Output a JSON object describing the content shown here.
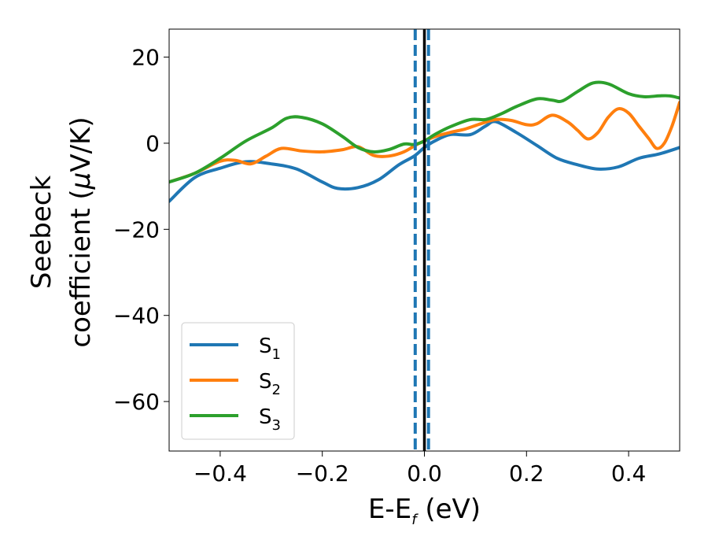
{
  "chart_data": {
    "type": "line",
    "title": "",
    "xlabel": {
      "base": "E-E",
      "sub": "f",
      "rest": " (eV)"
    },
    "ylabel": {
      "line1": "Seebeck",
      "line2_prefix": "coefficient  (",
      "mu": "μ",
      "line2_suffix": "V/K)"
    },
    "xlim": [
      -0.5,
      0.5
    ],
    "ylim": [
      -71.5,
      26.5
    ],
    "xticks": [
      -0.4,
      -0.2,
      0.0,
      0.2,
      0.4
    ],
    "xtick_labels": [
      "−0.4",
      "−0.2",
      "0.0",
      "0.2",
      "0.4"
    ],
    "yticks": [
      20,
      0,
      -20,
      -40,
      -60
    ],
    "ytick_labels": [
      "20",
      "0",
      "−20",
      "−40",
      "−60"
    ],
    "grid": false,
    "legend_position": "lower-left",
    "vlines": [
      {
        "x": -0.018,
        "style": "dashed",
        "color": "#1f77b4"
      },
      {
        "x": 0.008,
        "style": "dashed",
        "color": "#1f77b4"
      },
      {
        "x": 0.0,
        "style": "solid",
        "color": "#000000"
      }
    ],
    "series": [
      {
        "name": "S",
        "sub": "1",
        "color": "#1f77b4",
        "points": [
          [
            -0.5,
            -13.5
          ],
          [
            -0.45,
            -8
          ],
          [
            -0.4,
            -5.8
          ],
          [
            -0.35,
            -4.3
          ],
          [
            -0.3,
            -4.8
          ],
          [
            -0.25,
            -6
          ],
          [
            -0.2,
            -9
          ],
          [
            -0.17,
            -10.5
          ],
          [
            -0.13,
            -10.3
          ],
          [
            -0.09,
            -8.5
          ],
          [
            -0.05,
            -5
          ],
          [
            -0.02,
            -3
          ],
          [
            0.0,
            -1
          ],
          [
            0.02,
            0.5
          ],
          [
            0.05,
            2
          ],
          [
            0.09,
            2
          ],
          [
            0.12,
            4
          ],
          [
            0.14,
            5
          ],
          [
            0.18,
            2.5
          ],
          [
            0.22,
            -0.5
          ],
          [
            0.26,
            -3.5
          ],
          [
            0.3,
            -5
          ],
          [
            0.34,
            -6
          ],
          [
            0.38,
            -5.5
          ],
          [
            0.42,
            -3.5
          ],
          [
            0.46,
            -2.5
          ],
          [
            0.5,
            -1
          ]
        ]
      },
      {
        "name": "S",
        "sub": "2",
        "color": "#ff7f0e",
        "points": [
          [
            -0.5,
            -9
          ],
          [
            -0.45,
            -7
          ],
          [
            -0.4,
            -4.2
          ],
          [
            -0.37,
            -4
          ],
          [
            -0.34,
            -4.8
          ],
          [
            -0.31,
            -3
          ],
          [
            -0.28,
            -1.2
          ],
          [
            -0.24,
            -1.8
          ],
          [
            -0.2,
            -2
          ],
          [
            -0.16,
            -1.5
          ],
          [
            -0.13,
            -0.8
          ],
          [
            -0.1,
            -2.8
          ],
          [
            -0.07,
            -3
          ],
          [
            -0.04,
            -2
          ],
          [
            -0.01,
            0
          ],
          [
            0.02,
            1.5
          ],
          [
            0.05,
            2.5
          ],
          [
            0.08,
            3.3
          ],
          [
            0.11,
            4.5
          ],
          [
            0.14,
            5.5
          ],
          [
            0.17,
            5.3
          ],
          [
            0.2,
            4.3
          ],
          [
            0.22,
            4.5
          ],
          [
            0.25,
            6.5
          ],
          [
            0.28,
            5
          ],
          [
            0.3,
            3
          ],
          [
            0.32,
            1
          ],
          [
            0.34,
            2.5
          ],
          [
            0.36,
            6
          ],
          [
            0.38,
            8
          ],
          [
            0.4,
            7
          ],
          [
            0.42,
            4
          ],
          [
            0.44,
            1
          ],
          [
            0.455,
            -1.2
          ],
          [
            0.47,
            0
          ],
          [
            0.485,
            4
          ],
          [
            0.5,
            9.5
          ]
        ]
      },
      {
        "name": "S",
        "sub": "3",
        "color": "#2ca02c",
        "points": [
          [
            -0.5,
            -9
          ],
          [
            -0.45,
            -7
          ],
          [
            -0.4,
            -3.5
          ],
          [
            -0.35,
            0.5
          ],
          [
            -0.3,
            3.5
          ],
          [
            -0.27,
            5.8
          ],
          [
            -0.24,
            6
          ],
          [
            -0.2,
            4.5
          ],
          [
            -0.16,
            1.5
          ],
          [
            -0.13,
            -1
          ],
          [
            -0.1,
            -2
          ],
          [
            -0.07,
            -1.5
          ],
          [
            -0.04,
            -0.2
          ],
          [
            -0.02,
            -0.3
          ],
          [
            0.0,
            0.5
          ],
          [
            0.02,
            2
          ],
          [
            0.05,
            3.8
          ],
          [
            0.09,
            5.5
          ],
          [
            0.12,
            5.5
          ],
          [
            0.15,
            6.8
          ],
          [
            0.18,
            8.5
          ],
          [
            0.22,
            10.3
          ],
          [
            0.25,
            10
          ],
          [
            0.27,
            9.8
          ],
          [
            0.3,
            12
          ],
          [
            0.33,
            14
          ],
          [
            0.36,
            13.8
          ],
          [
            0.4,
            11.5
          ],
          [
            0.43,
            10.8
          ],
          [
            0.46,
            11
          ],
          [
            0.48,
            11
          ],
          [
            0.5,
            10.5
          ]
        ]
      }
    ]
  }
}
